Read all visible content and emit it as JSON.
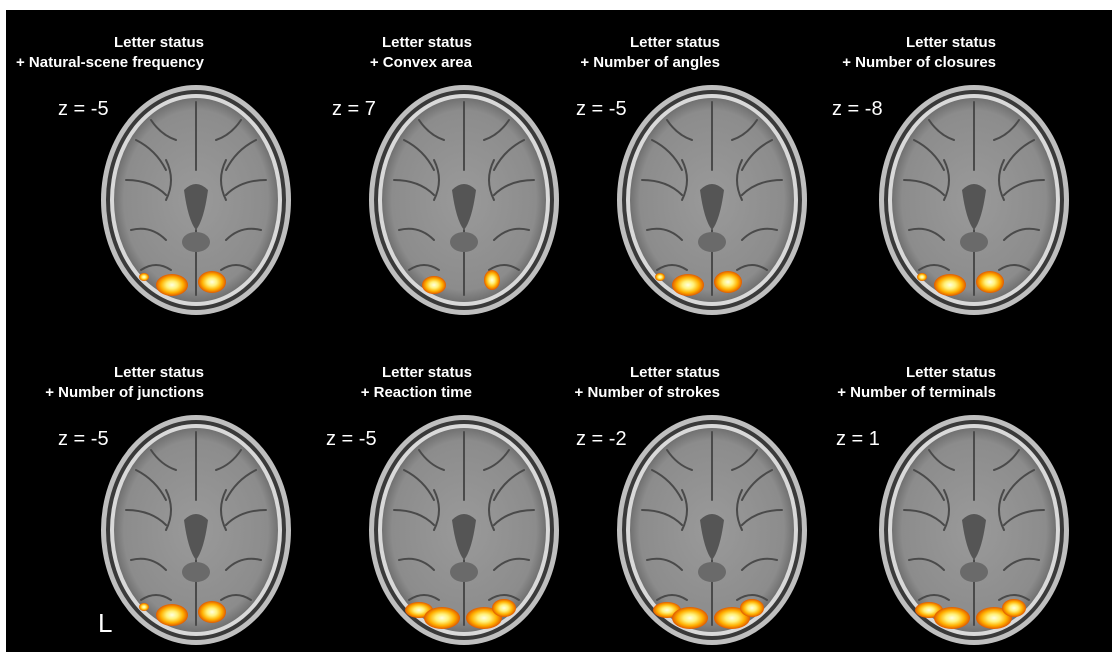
{
  "panels": [
    {
      "title1": "Letter status",
      "title2": "+ Natural-scene frequency",
      "z": "z = -5",
      "blobs": "occipital-bilateral"
    },
    {
      "title1": "Letter status",
      "title2": "+ Convex area",
      "z": "z = 7",
      "blobs": "occipital-small"
    },
    {
      "title1": "Letter status",
      "title2": "+ Number of angles",
      "z": "z = -5",
      "blobs": "occipital-bilateral"
    },
    {
      "title1": "Letter status",
      "title2": "+ Number of closures",
      "z": "z = -8",
      "blobs": "occipital-bilateral"
    },
    {
      "title1": "Letter status",
      "title2": "+ Number of junctions",
      "z": "z = -5",
      "blobs": "occipital-bilateral"
    },
    {
      "title1": "Letter status",
      "title2": "+ Reaction time",
      "z": "z = -5",
      "blobs": "occipital-wide"
    },
    {
      "title1": "Letter status",
      "title2": "+ Number of strokes",
      "z": "z = -2",
      "blobs": "occipital-wide"
    },
    {
      "title1": "Letter status",
      "title2": "+ Number of terminals",
      "z": "z = 1",
      "blobs": "occipital-wide"
    }
  ],
  "orientation_label": "L",
  "colors": {
    "background": "#000000",
    "brain_gray": "#8c8c8c",
    "skull": "#d9d9d9",
    "activation_hot": "#fff27a",
    "activation_mid": "#ffb000",
    "activation_low": "#e05a00"
  }
}
